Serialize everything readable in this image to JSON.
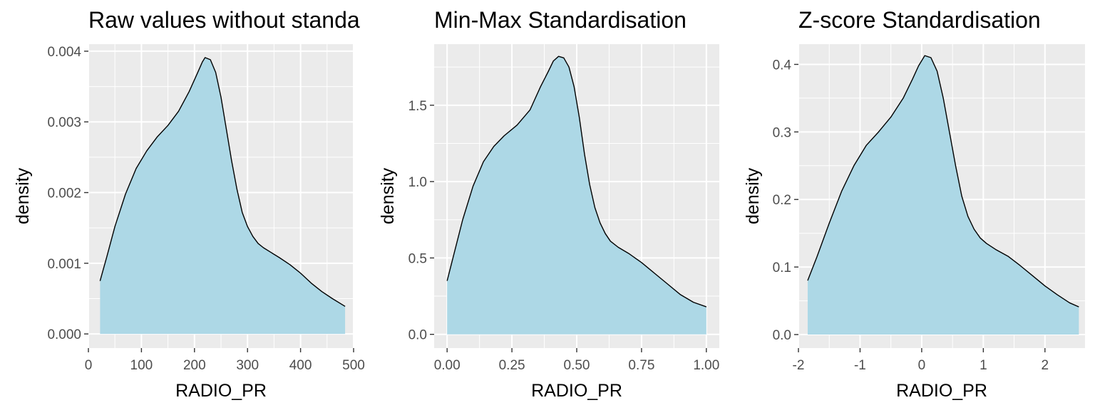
{
  "chart_data": [
    {
      "type": "area",
      "title": "Raw values without standa",
      "xlabel": "RADIO_PR",
      "ylabel": "density",
      "xlim": [
        0,
        500
      ],
      "ylim": [
        -0.0002,
        0.0041
      ],
      "xticks": [
        0,
        100,
        200,
        300,
        400,
        500
      ],
      "xtick_labels": [
        "0",
        "100",
        "200",
        "300",
        "400",
        "500"
      ],
      "yticks": [
        0.0,
        0.001,
        0.002,
        0.003,
        0.004
      ],
      "ytick_labels": [
        "0.000",
        "0.001",
        "0.002",
        "0.003",
        "0.004"
      ],
      "fill_color": "#add8e6",
      "line_color": "#000000",
      "grid": true,
      "x": [
        22,
        35,
        50,
        70,
        90,
        110,
        130,
        150,
        170,
        190,
        205,
        215,
        220,
        230,
        240,
        250,
        260,
        270,
        280,
        290,
        300,
        310,
        320,
        330,
        345,
        360,
        380,
        400,
        420,
        440,
        460,
        484
      ],
      "y": [
        0.00075,
        0.0011,
        0.00152,
        0.00198,
        0.00234,
        0.00259,
        0.00279,
        0.00295,
        0.00315,
        0.00343,
        0.00368,
        0.00385,
        0.00391,
        0.00388,
        0.0037,
        0.00335,
        0.0029,
        0.00245,
        0.00205,
        0.00172,
        0.00152,
        0.00138,
        0.00128,
        0.00122,
        0.00115,
        0.00108,
        0.00098,
        0.00086,
        0.00072,
        0.0006,
        0.0005,
        0.00039
      ]
    },
    {
      "type": "area",
      "title": "Min-Max Standardisation",
      "xlabel": "RADIO_PR",
      "ylabel": "density",
      "xlim": [
        -0.05,
        1.05
      ],
      "ylim": [
        -0.09,
        1.9
      ],
      "xticks": [
        0.0,
        0.25,
        0.5,
        0.75,
        1.0
      ],
      "xtick_labels": [
        "0.00",
        "0.25",
        "0.50",
        "0.75",
        "1.00"
      ],
      "yticks": [
        0.0,
        0.5,
        1.0,
        1.5
      ],
      "ytick_labels": [
        "0.0",
        "0.5",
        "1.0",
        "1.5"
      ],
      "fill_color": "#add8e6",
      "line_color": "#000000",
      "grid": true,
      "x": [
        0.0,
        0.03,
        0.06,
        0.1,
        0.14,
        0.18,
        0.22,
        0.27,
        0.32,
        0.36,
        0.39,
        0.41,
        0.43,
        0.45,
        0.47,
        0.49,
        0.51,
        0.53,
        0.55,
        0.57,
        0.59,
        0.61,
        0.63,
        0.66,
        0.7,
        0.75,
        0.8,
        0.85,
        0.9,
        0.95,
        1.0
      ],
      "y": [
        0.35,
        0.55,
        0.75,
        0.97,
        1.13,
        1.23,
        1.3,
        1.37,
        1.47,
        1.62,
        1.72,
        1.79,
        1.82,
        1.81,
        1.75,
        1.62,
        1.42,
        1.18,
        0.98,
        0.83,
        0.73,
        0.66,
        0.61,
        0.57,
        0.53,
        0.47,
        0.4,
        0.33,
        0.26,
        0.21,
        0.18
      ]
    },
    {
      "type": "area",
      "title": "Z-score Standardisation",
      "xlabel": "RADIO_PR",
      "ylabel": "density",
      "xlim": [
        -2.0,
        2.65
      ],
      "ylim": [
        -0.02,
        0.43
      ],
      "xticks": [
        -2,
        -1,
        0,
        1,
        2
      ],
      "xtick_labels": [
        "-2",
        "-1",
        "0",
        "1",
        "2"
      ],
      "yticks": [
        0.0,
        0.1,
        0.2,
        0.3,
        0.4
      ],
      "ytick_labels": [
        "0.0",
        "0.1",
        "0.2",
        "0.3",
        "0.4"
      ],
      "fill_color": "#add8e6",
      "line_color": "#000000",
      "grid": true,
      "x": [
        -1.85,
        -1.7,
        -1.5,
        -1.3,
        -1.1,
        -0.9,
        -0.7,
        -0.5,
        -0.3,
        -0.15,
        -0.05,
        0.05,
        0.15,
        0.25,
        0.35,
        0.45,
        0.55,
        0.65,
        0.75,
        0.85,
        0.95,
        1.05,
        1.2,
        1.4,
        1.6,
        1.8,
        2.0,
        2.2,
        2.4,
        2.55
      ],
      "y": [
        0.08,
        0.115,
        0.165,
        0.212,
        0.25,
        0.28,
        0.3,
        0.322,
        0.35,
        0.378,
        0.398,
        0.413,
        0.41,
        0.39,
        0.35,
        0.3,
        0.25,
        0.205,
        0.175,
        0.156,
        0.143,
        0.135,
        0.126,
        0.116,
        0.102,
        0.087,
        0.072,
        0.059,
        0.047,
        0.041
      ]
    }
  ]
}
